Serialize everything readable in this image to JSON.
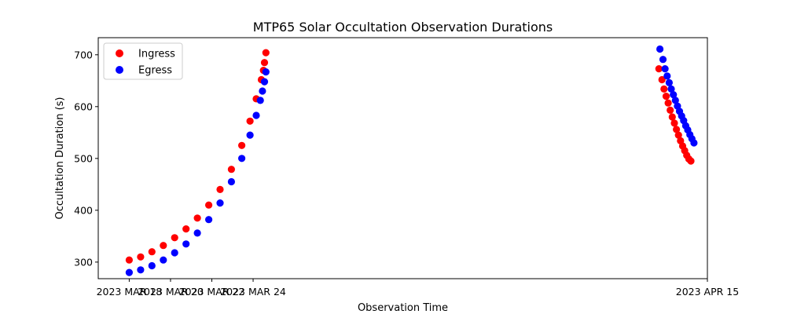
{
  "chart_data": {
    "type": "scatter",
    "title": "MTP65 Solar Occultation Observation Durations",
    "xlabel": "Observation Time",
    "ylabel": "Occultation Duration (s)",
    "xlim": [
      -1.5,
      28
    ],
    "ylim": [
      268,
      733
    ],
    "x_unit": "days since 2023 MAR 18",
    "xticks": [
      {
        "value": 0,
        "label": "2023 MAR 18"
      },
      {
        "value": 2,
        "label": "2023 MAR 20"
      },
      {
        "value": 4,
        "label": "2023 MAR 22"
      },
      {
        "value": 6,
        "label": "2023 MAR 24"
      },
      {
        "value": 28,
        "label": "2023 APR 15"
      }
    ],
    "yticks": [
      300,
      400,
      500,
      600,
      700
    ],
    "legend": {
      "location": "top-left"
    },
    "series": [
      {
        "name": "Ingress",
        "color": "#ff0000",
        "points": [
          [
            0.0,
            304
          ],
          [
            0.55,
            310
          ],
          [
            1.1,
            320
          ],
          [
            1.65,
            332
          ],
          [
            2.2,
            347
          ],
          [
            2.75,
            364
          ],
          [
            3.3,
            385
          ],
          [
            3.85,
            410
          ],
          [
            4.4,
            440
          ],
          [
            4.95,
            479
          ],
          [
            5.45,
            525
          ],
          [
            5.85,
            572
          ],
          [
            6.15,
            615
          ],
          [
            6.4,
            652
          ],
          [
            6.5,
            670
          ],
          [
            6.55,
            685
          ],
          [
            6.62,
            704
          ],
          [
            25.65,
            673
          ],
          [
            25.8,
            652
          ],
          [
            25.9,
            634
          ],
          [
            26.0,
            620
          ],
          [
            26.1,
            607
          ],
          [
            26.2,
            593
          ],
          [
            26.3,
            580
          ],
          [
            26.4,
            568
          ],
          [
            26.5,
            556
          ],
          [
            26.6,
            545
          ],
          [
            26.7,
            534
          ],
          [
            26.8,
            524
          ],
          [
            26.9,
            515
          ],
          [
            27.0,
            506
          ],
          [
            27.1,
            499
          ],
          [
            27.2,
            495
          ]
        ]
      },
      {
        "name": "Egress",
        "color": "#0000ff",
        "points": [
          [
            0.0,
            280
          ],
          [
            0.55,
            285
          ],
          [
            1.1,
            293
          ],
          [
            1.65,
            304
          ],
          [
            2.2,
            318
          ],
          [
            2.75,
            335
          ],
          [
            3.3,
            356
          ],
          [
            3.85,
            382
          ],
          [
            4.4,
            414
          ],
          [
            4.95,
            455
          ],
          [
            5.45,
            500
          ],
          [
            5.85,
            545
          ],
          [
            6.15,
            583
          ],
          [
            6.35,
            612
          ],
          [
            6.45,
            630
          ],
          [
            6.55,
            648
          ],
          [
            6.62,
            667
          ],
          [
            25.7,
            711
          ],
          [
            25.85,
            691
          ],
          [
            25.95,
            673
          ],
          [
            26.05,
            659
          ],
          [
            26.15,
            646
          ],
          [
            26.25,
            634
          ],
          [
            26.35,
            623
          ],
          [
            26.45,
            612
          ],
          [
            26.55,
            601
          ],
          [
            26.65,
            591
          ],
          [
            26.75,
            582
          ],
          [
            26.85,
            573
          ],
          [
            26.95,
            563
          ],
          [
            27.05,
            555
          ],
          [
            27.15,
            546
          ],
          [
            27.25,
            538
          ],
          [
            27.35,
            530
          ]
        ]
      }
    ]
  }
}
